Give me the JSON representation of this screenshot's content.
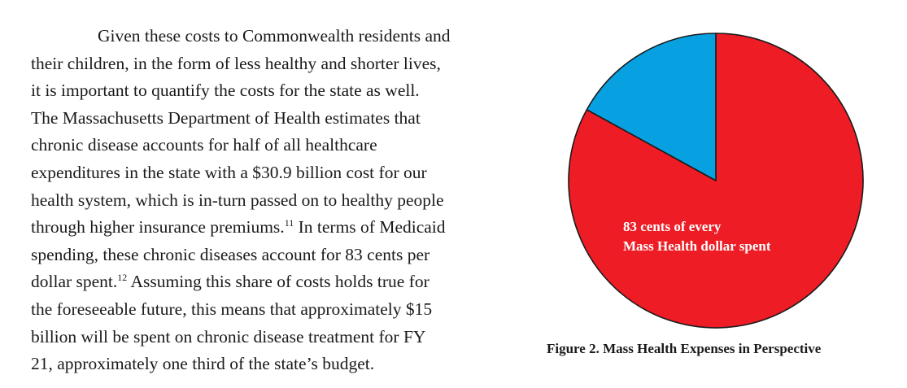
{
  "paragraph": {
    "lines": [
      {
        "text": "Given these costs to Commonwealth residents and"
      },
      {
        "text": "their children, in the form of less healthy and shorter lives,"
      },
      {
        "text": "it is important to quantify the costs for the state as well."
      },
      {
        "text": "The Massachusetts Department of Health estimates that"
      },
      {
        "text": "chronic disease accounts for half of all healthcare"
      },
      {
        "text": "expenditures in the state with a $30.9 billion cost for our"
      },
      {
        "text": "health system, which is in-turn passed on to healthy people"
      },
      {
        "text": "through higher insurance premiums.",
        "ref": "11",
        "after": " In terms of Medicaid"
      },
      {
        "text": "spending, these chronic diseases account for 83 cents per"
      },
      {
        "text": "dollar spent.",
        "ref": "12",
        "after": " Assuming this share of costs holds true for"
      },
      {
        "text": "the foreseeable future, this means that approximately $15"
      },
      {
        "text": "billion will be spent on chronic disease treatment for FY"
      },
      {
        "text": "21, approximately one third of the state’s budget."
      }
    ]
  },
  "chart_data": {
    "type": "pie",
    "slices": [
      {
        "value": 83,
        "color": "#ee1c25"
      },
      {
        "value": 17,
        "color": "#07a1e2"
      }
    ],
    "annotation": [
      "83 cents of every",
      "Mass Health dollar spent"
    ],
    "caption": "Figure 2. Mass Health Expenses in Perspective"
  }
}
